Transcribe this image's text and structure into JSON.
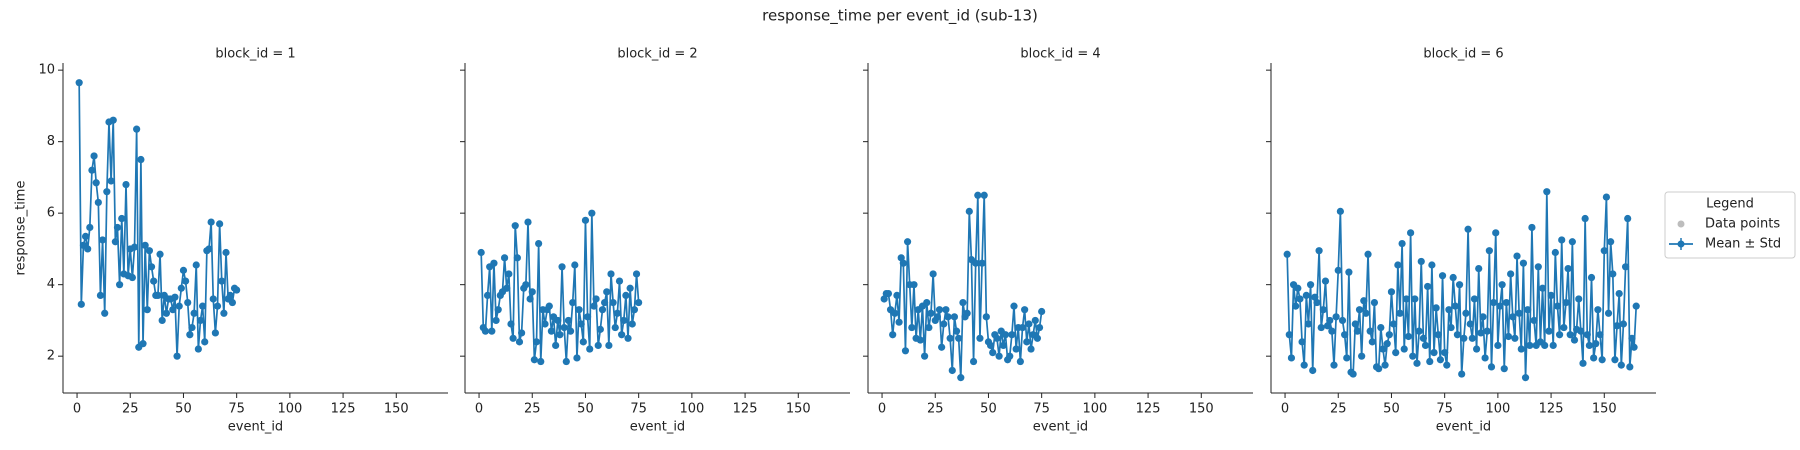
{
  "title": "response_time per event_id (sub-13)",
  "legend": {
    "title": "Legend",
    "entries": [
      {
        "name": "Data points",
        "color": "#bdbdbd"
      },
      {
        "name": "Mean ± Std",
        "color": "#1f77b4"
      }
    ]
  },
  "chart_data": [
    {
      "type": "line",
      "title": "block_id = 1",
      "xlabel": "event_id",
      "ylabel": "response_time",
      "xlim": [
        -6.6,
        174.3
      ],
      "ylim": [
        0.97,
        10.2
      ],
      "xticks": [
        0,
        25,
        50,
        75,
        100,
        125,
        150
      ],
      "yticks": [
        2,
        4,
        6,
        8,
        10
      ],
      "x": [
        1,
        2,
        3,
        4,
        5,
        6,
        7,
        8,
        9,
        10,
        11,
        12,
        13,
        14,
        15,
        16,
        17,
        18,
        19,
        20,
        21,
        22,
        23,
        24,
        25,
        26,
        27,
        28,
        29,
        30,
        31,
        32,
        33,
        34,
        35,
        36,
        37,
        38,
        39,
        40,
        41,
        42,
        43,
        44,
        45,
        46,
        47,
        48,
        49,
        50,
        51,
        52,
        53,
        54,
        55,
        56,
        57,
        58,
        59,
        60,
        61,
        62,
        63,
        64,
        65,
        66,
        67,
        68,
        69,
        70,
        71,
        72,
        73,
        74,
        75
      ],
      "series": [
        {
          "color": "#1f77b4",
          "values": [
            9.65,
            3.45,
            5.1,
            5.35,
            5.0,
            5.6,
            7.2,
            7.6,
            6.85,
            6.3,
            3.7,
            5.25,
            3.2,
            6.6,
            8.55,
            6.9,
            8.6,
            5.2,
            5.6,
            4.0,
            5.85,
            4.3,
            6.8,
            4.25,
            5.0,
            4.2,
            5.05,
            8.35,
            2.25,
            7.5,
            2.35,
            5.1,
            3.3,
            4.95,
            4.5,
            4.1,
            3.7,
            3.7,
            4.85,
            3.0,
            3.7,
            3.2,
            3.6,
            3.6,
            3.3,
            3.65,
            2.0,
            3.4,
            3.9,
            4.4,
            4.1,
            3.5,
            2.6,
            2.8,
            3.2,
            4.55,
            2.2,
            3.0,
            3.4,
            2.4,
            4.95,
            5.0,
            5.75,
            3.6,
            2.65,
            3.4,
            5.7,
            4.1,
            3.2,
            4.9,
            3.6,
            3.7,
            3.5,
            3.9,
            3.85
          ]
        }
      ]
    },
    {
      "type": "line",
      "title": "block_id = 2",
      "xlabel": "event_id",
      "xlim": [
        -6.6,
        174.3
      ],
      "ylim": [
        0.97,
        10.2
      ],
      "xticks": [
        0,
        25,
        50,
        75,
        100,
        125,
        150
      ],
      "yticks": [
        2,
        4,
        6,
        8,
        10
      ],
      "x": [
        1,
        2,
        3,
        4,
        5,
        6,
        7,
        8,
        9,
        10,
        11,
        12,
        13,
        14,
        15,
        16,
        17,
        18,
        19,
        20,
        21,
        22,
        23,
        24,
        25,
        26,
        27,
        28,
        29,
        30,
        31,
        32,
        33,
        34,
        35,
        36,
        37,
        38,
        39,
        40,
        41,
        42,
        43,
        44,
        45,
        46,
        47,
        48,
        49,
        50,
        51,
        52,
        53,
        54,
        55,
        56,
        57,
        58,
        59,
        60,
        61,
        62,
        63,
        64,
        65,
        66,
        67,
        68,
        69,
        70,
        71,
        72,
        73,
        74,
        75
      ],
      "series": [
        {
          "color": "#1f77b4",
          "values": [
            4.9,
            2.8,
            2.7,
            3.7,
            4.5,
            2.7,
            4.6,
            3.0,
            3.3,
            3.7,
            3.8,
            4.75,
            3.9,
            4.3,
            2.9,
            2.5,
            5.65,
            4.75,
            2.4,
            2.65,
            3.9,
            4.0,
            5.75,
            3.6,
            3.8,
            1.9,
            2.4,
            5.15,
            1.85,
            3.3,
            2.9,
            3.3,
            3.4,
            2.7,
            3.1,
            2.3,
            3.0,
            2.6,
            4.5,
            2.8,
            1.85,
            3.0,
            2.7,
            3.5,
            4.55,
            1.95,
            3.3,
            2.9,
            2.4,
            5.8,
            3.1,
            2.2,
            6.0,
            3.4,
            3.6,
            2.3,
            2.75,
            3.3,
            3.5,
            3.8,
            2.3,
            4.3,
            3.5,
            2.8,
            3.2,
            4.1,
            2.6,
            3.0,
            3.7,
            2.5,
            3.9,
            2.9,
            3.3,
            4.3,
            3.5
          ]
        }
      ]
    },
    {
      "type": "line",
      "title": "block_id = 4",
      "xlabel": "event_id",
      "xlim": [
        -6.6,
        174.3
      ],
      "ylim": [
        0.97,
        10.2
      ],
      "xticks": [
        0,
        25,
        50,
        75,
        100,
        125,
        150
      ],
      "yticks": [
        2,
        4,
        6,
        8,
        10
      ],
      "x": [
        1,
        2,
        3,
        4,
        5,
        6,
        7,
        8,
        9,
        10,
        11,
        12,
        13,
        14,
        15,
        16,
        17,
        18,
        19,
        20,
        21,
        22,
        23,
        24,
        25,
        26,
        27,
        28,
        29,
        30,
        31,
        32,
        33,
        34,
        35,
        36,
        37,
        38,
        39,
        40,
        41,
        42,
        43,
        44,
        45,
        46,
        47,
        48,
        49,
        50,
        51,
        52,
        53,
        54,
        55,
        56,
        57,
        58,
        59,
        60,
        61,
        62,
        63,
        64,
        65,
        66,
        67,
        68,
        69,
        70,
        71,
        72,
        73,
        74,
        75
      ],
      "series": [
        {
          "color": "#1f77b4",
          "values": [
            3.6,
            3.75,
            3.75,
            3.3,
            2.6,
            3.2,
            3.7,
            2.95,
            4.75,
            4.6,
            2.15,
            5.2,
            4.0,
            2.8,
            4.0,
            2.5,
            3.3,
            2.45,
            3.4,
            2.0,
            3.5,
            2.8,
            3.2,
            4.3,
            3.0,
            3.1,
            3.3,
            2.25,
            2.9,
            3.3,
            3.1,
            2.5,
            1.6,
            3.1,
            2.7,
            2.5,
            1.4,
            3.5,
            3.1,
            3.2,
            6.05,
            4.7,
            1.85,
            4.6,
            6.5,
            2.5,
            4.6,
            6.5,
            3.1,
            2.4,
            2.3,
            2.1,
            2.6,
            2.5,
            2.0,
            2.7,
            2.3,
            2.6,
            1.9,
            2.0,
            2.6,
            3.4,
            2.2,
            2.8,
            1.85,
            2.8,
            3.3,
            2.4,
            2.9,
            2.2,
            2.6,
            3.0,
            2.5,
            2.8,
            3.25
          ]
        }
      ]
    },
    {
      "type": "line",
      "title": "block_id = 6",
      "xlabel": "event_id",
      "xlim": [
        -6.6,
        174.3
      ],
      "ylim": [
        0.97,
        10.2
      ],
      "xticks": [
        0,
        25,
        50,
        75,
        100,
        125,
        150
      ],
      "yticks": [
        2,
        4,
        6,
        8,
        10
      ],
      "x": [
        1,
        2,
        3,
        4,
        5,
        6,
        7,
        8,
        9,
        10,
        11,
        12,
        13,
        14,
        15,
        16,
        17,
        18,
        19,
        20,
        21,
        22,
        23,
        24,
        25,
        26,
        27,
        28,
        29,
        30,
        31,
        32,
        33,
        34,
        35,
        36,
        37,
        38,
        39,
        40,
        41,
        42,
        43,
        44,
        45,
        46,
        47,
        48,
        49,
        50,
        51,
        52,
        53,
        54,
        55,
        56,
        57,
        58,
        59,
        60,
        61,
        62,
        63,
        64,
        65,
        66,
        67,
        68,
        69,
        70,
        71,
        72,
        73,
        74,
        75,
        76,
        77,
        78,
        79,
        80,
        81,
        82,
        83,
        84,
        85,
        86,
        87,
        88,
        89,
        90,
        91,
        92,
        93,
        94,
        95,
        96,
        97,
        98,
        99,
        100,
        101,
        102,
        103,
        104,
        105,
        106,
        107,
        108,
        109,
        110,
        111,
        112,
        113,
        114,
        115,
        116,
        117,
        118,
        119,
        120,
        121,
        122,
        123,
        124,
        125,
        126,
        127,
        128,
        129,
        130,
        131,
        132,
        133,
        134,
        135,
        136,
        137,
        138,
        139,
        140,
        141,
        142,
        143,
        144,
        145,
        146,
        147,
        148,
        149,
        150,
        151,
        152,
        153,
        154,
        155,
        156,
        157,
        158,
        159,
        160,
        161,
        162,
        163,
        164,
        165
      ],
      "series": [
        {
          "color": "#1f77b4",
          "values": [
            4.85,
            2.6,
            1.95,
            4.0,
            3.4,
            3.9,
            3.6,
            2.4,
            1.75,
            3.7,
            2.9,
            4.0,
            1.6,
            3.65,
            3.5,
            4.95,
            2.8,
            3.3,
            4.1,
            2.85,
            3.0,
            2.7,
            1.75,
            3.1,
            4.4,
            6.05,
            3.0,
            2.6,
            1.95,
            4.35,
            1.55,
            1.5,
            2.9,
            2.7,
            3.3,
            2.0,
            3.55,
            3.2,
            4.85,
            2.7,
            2.4,
            3.5,
            1.7,
            1.65,
            2.8,
            2.2,
            1.75,
            2.35,
            2.6,
            3.8,
            2.9,
            2.1,
            4.55,
            3.2,
            5.15,
            2.2,
            3.6,
            2.55,
            5.45,
            2.0,
            3.6,
            1.8,
            2.7,
            4.65,
            2.5,
            2.3,
            3.95,
            1.85,
            4.55,
            2.1,
            3.35,
            2.6,
            1.9,
            4.25,
            2.1,
            1.75,
            3.3,
            2.8,
            4.2,
            3.4,
            2.6,
            4.0,
            1.5,
            2.5,
            3.2,
            5.55,
            2.9,
            2.5,
            3.6,
            2.2,
            4.45,
            2.65,
            3.1,
            1.95,
            2.7,
            4.95,
            1.7,
            3.5,
            5.45,
            2.3,
            3.4,
            4.0,
            1.65,
            3.5,
            2.55,
            4.3,
            3.1,
            2.5,
            4.8,
            3.2,
            2.2,
            4.6,
            1.4,
            3.3,
            2.3,
            5.6,
            3.0,
            2.3,
            4.5,
            2.4,
            3.9,
            2.3,
            6.6,
            2.7,
            3.7,
            2.3,
            4.9,
            3.4,
            2.6,
            5.25,
            2.8,
            3.5,
            4.45,
            2.6,
            5.2,
            2.45,
            2.75,
            3.6,
            2.7,
            1.8,
            5.85,
            2.6,
            2.3,
            4.2,
            1.95,
            2.35,
            3.3,
            2.6,
            1.9,
            4.95,
            6.45,
            3.2,
            5.2,
            4.3,
            1.9,
            2.85,
            3.75,
            1.75,
            2.9,
            4.5,
            5.85,
            1.7,
            2.5,
            2.25,
            3.4
          ]
        }
      ]
    }
  ]
}
